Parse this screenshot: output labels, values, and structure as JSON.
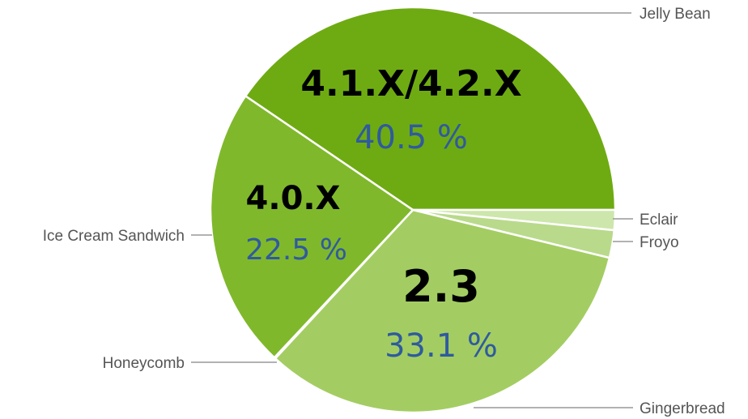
{
  "chart_data": {
    "type": "pie",
    "slices": [
      {
        "name": "Jelly Bean",
        "value": 40.5,
        "version": "4.1.X/4.2.X",
        "percent_label": "40.5 %",
        "color": "#6eab12"
      },
      {
        "name": "Ice Cream Sandwich",
        "value": 22.5,
        "version": "4.0.X",
        "percent_label": "22.5 %",
        "color": "#80b82c"
      },
      {
        "name": "Honeycomb",
        "value": 0.1,
        "version": "",
        "percent_label": "",
        "color": "#8fc13e"
      },
      {
        "name": "Gingerbread",
        "value": 33.1,
        "version": "2.3",
        "percent_label": "33.1 %",
        "color": "#a3cd62"
      },
      {
        "name": "Froyo",
        "value": 2.2,
        "version": "",
        "percent_label": "",
        "color": "#b9da8b"
      },
      {
        "name": "Eclair",
        "value": 1.6,
        "version": "",
        "percent_label": "",
        "color": "#cde6ab"
      }
    ],
    "legend_placement": "outside-with-leader-lines"
  }
}
